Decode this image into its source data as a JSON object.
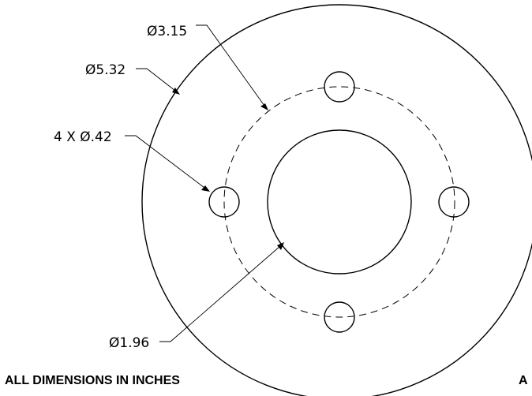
{
  "dimensions": {
    "bolt_circle_diameter": "Ø3.15",
    "outer_diameter": "Ø5.32",
    "hole_pattern": "4 X Ø.42",
    "bore_diameter": "Ø1.96"
  },
  "notes": {
    "units_note": "ALL DIMENSIONS IN INCHES",
    "view_label": "A"
  },
  "colors": {
    "line": "#000000",
    "background": "#ffffff"
  }
}
